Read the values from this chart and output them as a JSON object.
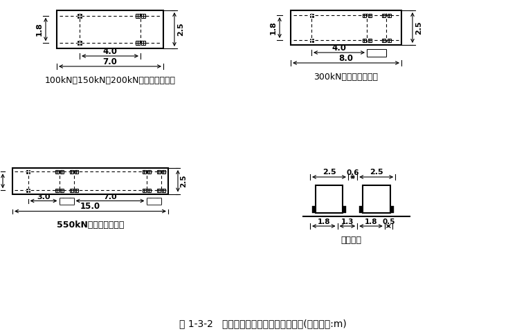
{
  "bg_color": "#ffffff",
  "title": "图 1-3-2   各级汽车的平面尺寸和横向布置(尺寸单位:m)",
  "label_100": "100kN、150kN、200kN汽车的平面尺寸",
  "label_300": "300kN汽车的平面尺寸",
  "label_550": "550kN汽车的平面尺寸",
  "label_lateral": "横向布置"
}
